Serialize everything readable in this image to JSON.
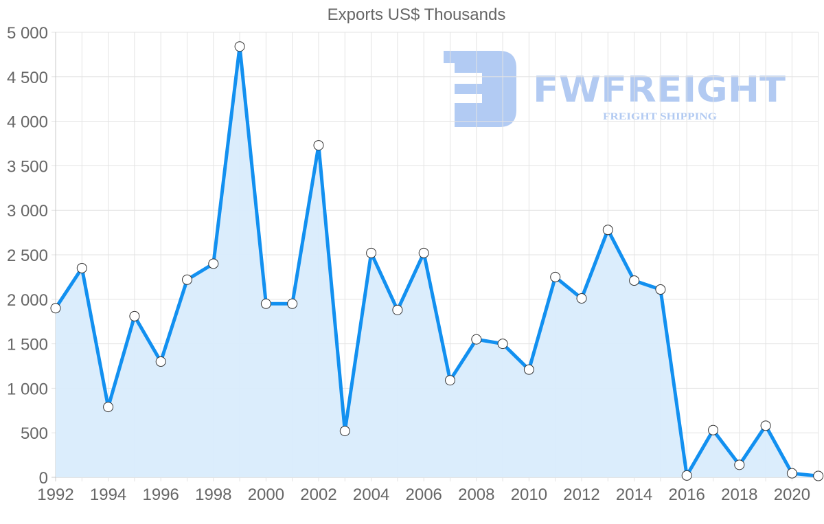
{
  "chart_data": {
    "type": "area",
    "title": "Exports US$ Thousands",
    "xlabel": "",
    "ylabel": "",
    "ylim": [
      0,
      5000
    ],
    "yticks": [
      0,
      500,
      1000,
      1500,
      2000,
      2500,
      3000,
      3500,
      4000,
      4500,
      5000
    ],
    "ytick_labels": [
      "0",
      "500",
      "1 000",
      "1 500",
      "2 000",
      "2 500",
      "3 000",
      "3 500",
      "4 000",
      "4 500",
      "5 000"
    ],
    "xtick_labels": [
      "1992",
      "1994",
      "1996",
      "1998",
      "2000",
      "2002",
      "2004",
      "2006",
      "2008",
      "2010",
      "2012",
      "2014",
      "2016",
      "2018",
      "2020"
    ],
    "grid": true,
    "legend": null,
    "x": [
      1992,
      1993,
      1994,
      1995,
      1996,
      1997,
      1998,
      1999,
      2000,
      2001,
      2002,
      2003,
      2004,
      2005,
      2006,
      2007,
      2008,
      2009,
      2010,
      2011,
      2012,
      2013,
      2014,
      2015,
      2016,
      2017,
      2018,
      2019,
      2020,
      2021
    ],
    "series": [
      {
        "name": "Exports US$ Thousands",
        "color": "#1290f0",
        "fill": "#d9ecfc",
        "values": [
          1900,
          2350,
          790,
          1810,
          1300,
          2220,
          2400,
          4840,
          1950,
          1950,
          3730,
          520,
          2520,
          1880,
          2520,
          1090,
          1550,
          1500,
          1210,
          2250,
          2010,
          2780,
          2210,
          2110,
          20,
          530,
          140,
          580,
          45,
          15
        ]
      }
    ]
  },
  "watermark": {
    "brand": "FWFREIGHT",
    "tagline": "FREIGHT SHIPPING",
    "color": "#aec8f2"
  }
}
